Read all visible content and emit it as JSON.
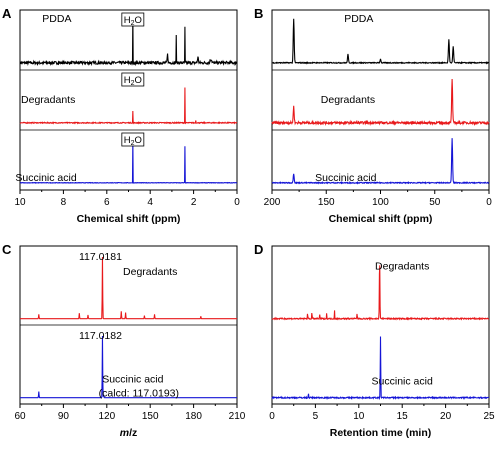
{
  "colors": {
    "black": "#000000",
    "red": "#e8191b",
    "blue": "#1515d6"
  },
  "chart_data": [
    {
      "id": "A",
      "label": "A",
      "type": "line",
      "xlabel": "Chemical shift (ppm)",
      "xlim": [
        10,
        0
      ],
      "reversed": true,
      "ticks": [
        10,
        8,
        6,
        4,
        2,
        0
      ],
      "tick_labels": [
        "10",
        "8",
        "6",
        "4",
        "2",
        "0"
      ],
      "series": [
        {
          "name": "PDDA",
          "color": "black",
          "noise": 0.06,
          "annotation": "H2O",
          "annotation_x": 4.8,
          "peaks": [
            [
              4.8,
              1.0,
              0.02
            ],
            [
              2.8,
              0.6,
              0.08
            ],
            [
              2.4,
              0.75,
              0.07
            ],
            [
              3.2,
              0.18,
              0.25
            ],
            [
              1.8,
              0.12,
              0.3
            ],
            [
              1.2,
              0.08,
              0.5
            ]
          ]
        },
        {
          "name": "Degradants",
          "color": "red",
          "noise": 0.02,
          "annotation": "H2O",
          "annotation_x": 4.8,
          "peaks": [
            [
              4.8,
              0.25,
              0.02
            ],
            [
              2.4,
              0.75,
              0.02
            ],
            [
              1.9,
              0.06,
              0.05
            ]
          ]
        },
        {
          "name": "Succinic acid",
          "color": "blue",
          "noise": 0.01,
          "annotation": "H2O",
          "annotation_x": 4.8,
          "peaks": [
            [
              4.8,
              0.92,
              0.01
            ],
            [
              2.4,
              0.78,
              0.01
            ]
          ]
        }
      ]
    },
    {
      "id": "B",
      "label": "B",
      "type": "line",
      "xlabel": "Chemical shift (ppm)",
      "xlim": [
        200,
        0
      ],
      "reversed": true,
      "ticks": [
        200,
        150,
        100,
        50,
        0
      ],
      "tick_labels": [
        "200",
        "150",
        "100",
        "50",
        "0"
      ],
      "series": [
        {
          "name": "PDDA",
          "color": "black",
          "noise": 0.02,
          "peaks": [
            [
              180,
              0.95,
              0.3
            ],
            [
              130,
              0.18,
              0.3
            ],
            [
              100,
              0.08,
              0.3
            ],
            [
              37,
              0.5,
              0.3
            ],
            [
              33,
              0.35,
              0.3
            ]
          ]
        },
        {
          "name": "Degradants",
          "color": "red",
          "noise": 0.05,
          "peaks": [
            [
              180,
              0.35,
              0.3
            ],
            [
              34,
              0.95,
              0.3
            ]
          ]
        },
        {
          "name": "Succinic acid",
          "color": "blue",
          "noise": 0.02,
          "peaks": [
            [
              180,
              0.2,
              0.3
            ],
            [
              34,
              0.95,
              0.3
            ]
          ]
        }
      ]
    },
    {
      "id": "C",
      "label": "C",
      "type": "line",
      "xlabel": "m/z",
      "xlim": [
        60,
        210
      ],
      "reversed": false,
      "ticks": [
        60,
        90,
        120,
        150,
        180,
        210
      ],
      "tick_labels": [
        "60",
        "90",
        "120",
        "150",
        "180",
        "210"
      ],
      "series": [
        {
          "name": "Degradants",
          "color": "red",
          "noise": 0.0,
          "peak_label": "117.0181",
          "peaks": [
            [
              117.0,
              1.0,
              0.15
            ],
            [
              73,
              0.07,
              0.15
            ],
            [
              101,
              0.09,
              0.15
            ],
            [
              107,
              0.06,
              0.15
            ],
            [
              130,
              0.12,
              0.15
            ],
            [
              133,
              0.1,
              0.15
            ],
            [
              146,
              0.05,
              0.15
            ],
            [
              153,
              0.07,
              0.15
            ],
            [
              185,
              0.04,
              0.15
            ]
          ]
        },
        {
          "name": "Succinic acid",
          "sublabel": "(calcd: 117.0193)",
          "color": "blue",
          "noise": 0.0,
          "peak_label": "117.0182",
          "peaks": [
            [
              117.0,
              1.0,
              0.15
            ],
            [
              73,
              0.1,
              0.15
            ],
            [
              117.8,
              0.05,
              0.15
            ]
          ]
        }
      ]
    },
    {
      "id": "D",
      "label": "D",
      "type": "line",
      "xlabel": "Retention time (min)",
      "xlim": [
        0,
        25
      ],
      "reversed": false,
      "ticks": [
        0,
        5,
        10,
        15,
        20,
        25
      ],
      "tick_labels": [
        "0",
        "5",
        "10",
        "15",
        "20",
        "25"
      ],
      "series": [
        {
          "name": "Degradants",
          "color": "red",
          "noise": 0.02,
          "peaks": [
            [
              12.4,
              1.0,
              0.18
            ],
            [
              4.1,
              0.1,
              0.12
            ],
            [
              4.6,
              0.14,
              0.1
            ],
            [
              5.5,
              0.06,
              0.15
            ],
            [
              6.3,
              0.1,
              0.1
            ],
            [
              7.2,
              0.15,
              0.1
            ],
            [
              9.8,
              0.08,
              0.15
            ]
          ]
        },
        {
          "name": "Succinic acid",
          "color": "blue",
          "noise": 0.02,
          "peaks": [
            [
              12.5,
              1.0,
              0.16
            ],
            [
              4.2,
              0.06,
              0.15
            ]
          ]
        }
      ]
    }
  ]
}
